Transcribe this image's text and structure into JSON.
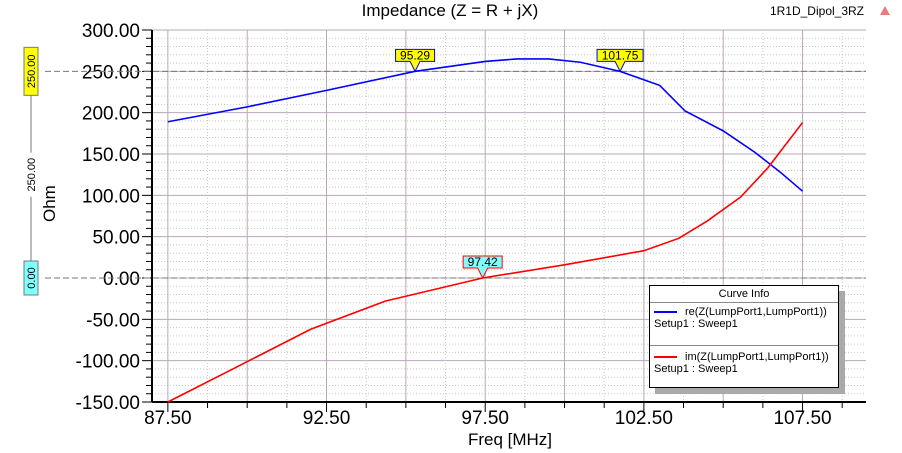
{
  "project_label": "1R1D_Dipol_3RZ",
  "chart_data": {
    "type": "line",
    "title": "Impedance (Z = R + jX)",
    "xlabel": "Freq [MHz]",
    "ylabel": "Ohm",
    "xlim": [
      87.0,
      109.5
    ],
    "ylim": [
      -150,
      300
    ],
    "xticks": [
      87.5,
      92.5,
      97.5,
      102.5,
      107.5
    ],
    "xtick_labels": [
      "87.50",
      "92.50",
      "97.50",
      "102.50",
      "107.50"
    ],
    "yticks": [
      300,
      250,
      200,
      150,
      100,
      50,
      0,
      -50,
      -100,
      -150
    ],
    "ytick_labels": [
      "300.00",
      "250.00",
      "200.00",
      "150.00",
      "100.00",
      "50.00",
      "0.00",
      "-50.00",
      "-100.00",
      "-150.00"
    ],
    "grid": true,
    "legend": {
      "title": "Curve Info",
      "placement": "bottom-right",
      "entries": [
        {
          "name": "re(Z(LumpPort1,LumpPort1))",
          "sub": "Setup1 : Sweep1"
        },
        {
          "name": "im(Z(LumpPort1,LumpPort1))",
          "sub": "Setup1 : Sweep1"
        }
      ]
    },
    "series": [
      {
        "name": "re(Z(LumpPort1,LumpPort1))",
        "color": "#0000ff",
        "x": [
          87.5,
          90,
          92.5,
          95.29,
          97.5,
          98.5,
          99.5,
          100.5,
          101.75,
          103,
          103.8,
          105,
          106,
          106.8,
          107.5
        ],
        "y": [
          189,
          207,
          227,
          250,
          262,
          265,
          265,
          261,
          250,
          233,
          202,
          178,
          152,
          128,
          105
        ]
      },
      {
        "name": "im(Z(LumpPort1,LumpPort1))",
        "color": "#ff0000",
        "x": [
          87.5,
          89.55,
          92.0,
          94.35,
          97.42,
          100.0,
          102.5,
          103.6,
          104.5,
          105.55,
          106.4,
          107.5
        ],
        "y": [
          -150,
          -110,
          -62,
          -28,
          0,
          16,
          33,
          48,
          69,
          98,
          133,
          188
        ]
      }
    ],
    "markers": [
      {
        "label": "95.29",
        "series": 0,
        "x": 95.29,
        "y": 250,
        "color": "#ffff00"
      },
      {
        "label": "101.75",
        "series": 0,
        "x": 101.75,
        "y": 250,
        "color": "#ffff00"
      },
      {
        "label": "97.42",
        "series": 1,
        "x": 97.42,
        "y": 0,
        "color": "#80ffff"
      }
    ],
    "y_markers": [
      {
        "label": "250.00",
        "y": 250,
        "color": "#ffff00"
      },
      {
        "label": "0.00",
        "y": 0,
        "color": "#80ffff"
      }
    ],
    "delta_label": "250.00"
  }
}
